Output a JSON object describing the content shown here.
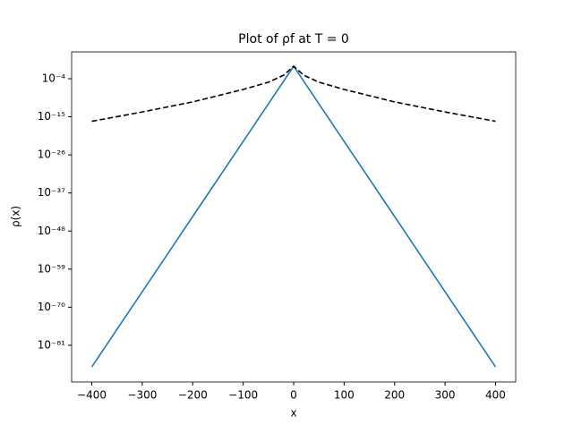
{
  "chart_data": {
    "type": "line",
    "title": "Plot of ρf at T = 0",
    "xlabel": "x",
    "ylabel": "ρ(x)",
    "x": [
      -400,
      -300,
      -200,
      -100,
      -50,
      -20,
      0,
      20,
      50,
      100,
      200,
      300,
      400
    ],
    "series": [
      {
        "color": "#1f77b4",
        "dash": false,
        "values": [
          6e-88,
          3e-66,
          1.6e-44,
          8e-23,
          5.6e-12,
          1.8e-05,
          0.4,
          1.8e-05,
          5.6e-12,
          8e-23,
          1.6e-44,
          3e-66,
          6e-88
        ]
      },
      {
        "color": "#000000",
        "dash": true,
        "values": [
          5e-17,
          2.5e-14,
          2e-11,
          8e-08,
          1e-05,
          0.001,
          0.4,
          0.001,
          1e-05,
          8e-08,
          2e-11,
          2.5e-14,
          5e-17
        ]
      }
    ],
    "xlim": [
      -440,
      440
    ],
    "ylim": [
      2.5e-92,
      5600.0
    ],
    "yscale": "log",
    "xticks": [
      {
        "value": -400,
        "label": "−400"
      },
      {
        "value": -300,
        "label": "−300"
      },
      {
        "value": -200,
        "label": "−200"
      },
      {
        "value": -100,
        "label": "−100"
      },
      0,
      100,
      200,
      300,
      400
    ],
    "yticks": [
      {
        "value": 0.0001,
        "label": "10⁻⁴"
      },
      {
        "value": 1e-15,
        "label": "10⁻¹⁵"
      },
      {
        "value": 1e-26,
        "label": "10⁻²⁶"
      },
      {
        "value": 1e-37,
        "label": "10⁻³⁷"
      },
      {
        "value": 1e-48,
        "label": "10⁻⁴⁸"
      },
      {
        "value": 1e-59,
        "label": "10⁻⁵⁹"
      },
      {
        "value": 1e-70,
        "label": "10⁻⁷⁰"
      },
      {
        "value": 1e-81,
        "label": "10⁻⁸¹"
      }
    ]
  }
}
